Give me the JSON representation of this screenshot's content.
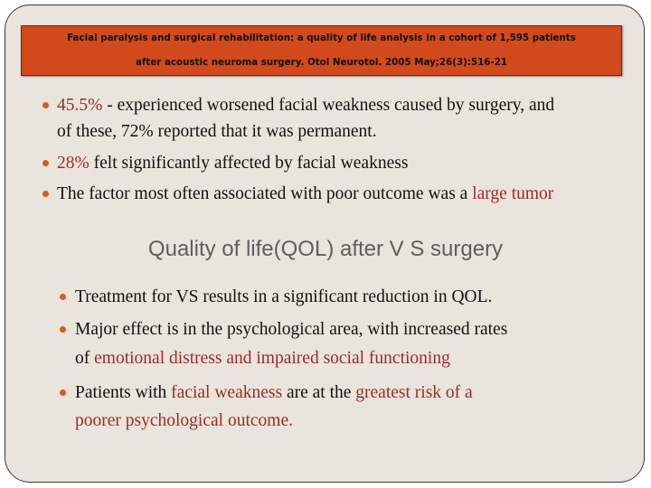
{
  "reference": {
    "line1": "Facial paralysis and surgical rehabilitation: a quality of life analysis in a cohort of 1,595 patients",
    "line2": "after acoustic neuroma surgery. Otol Neurotol. 2005 May;26(3):516-21"
  },
  "bullets_top": [
    {
      "highlight": "45.5%",
      "text1": " - experienced worsened facial weakness caused by surgery, and",
      "text2": "of these, 72% reported that it was permanent."
    },
    {
      "highlight": "28%",
      "text": " felt significantly affected by facial weakness"
    },
    {
      "text": "The factor most often associated with poor outcome was a ",
      "highlight": "large tumor"
    }
  ],
  "section_title": "Quality of life(QOL) after V S surgery",
  "bullets_bottom": [
    {
      "text": "Treatment for VS results in a significant reduction in QOL."
    },
    {
      "text1": "Major effect is in the psychological area, with increased rates",
      "text2": "of ",
      "highlight": "emotional distress and impaired social functioning"
    },
    {
      "text1": "Patients with ",
      "highlight1": "facial weakness",
      "text2": " are at the ",
      "highlight2": "greatest risk of a",
      "highlight3": "poorer psychological outcome."
    }
  ],
  "colors": {
    "accent": "#d2491c",
    "highlight": "#9b2b25",
    "bullet": "#e0571f",
    "background": "#e9e5dd"
  }
}
